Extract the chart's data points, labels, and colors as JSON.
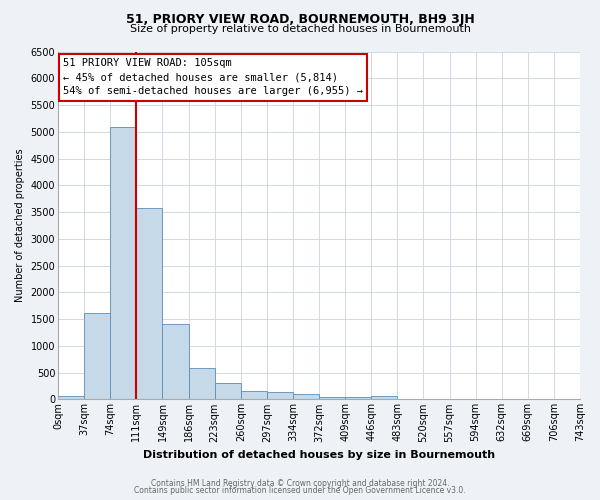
{
  "title": "51, PRIORY VIEW ROAD, BOURNEMOUTH, BH9 3JH",
  "subtitle": "Size of property relative to detached houses in Bournemouth",
  "xlabel": "Distribution of detached houses by size in Bournemouth",
  "ylabel": "Number of detached properties",
  "bin_labels": [
    "0sqm",
    "37sqm",
    "74sqm",
    "111sqm",
    "149sqm",
    "186sqm",
    "223sqm",
    "260sqm",
    "297sqm",
    "334sqm",
    "372sqm",
    "409sqm",
    "446sqm",
    "483sqm",
    "520sqm",
    "557sqm",
    "594sqm",
    "632sqm",
    "669sqm",
    "706sqm",
    "743sqm"
  ],
  "bar_values": [
    70,
    1620,
    5090,
    3580,
    1400,
    590,
    300,
    155,
    130,
    95,
    45,
    50,
    55,
    0,
    0,
    0,
    0,
    0,
    0,
    0
  ],
  "bar_color": "#c6d9e8",
  "bar_edge_color": "#5b8db8",
  "vline_color": "#cc0000",
  "vline_x": 3,
  "annotation_text": "51 PRIORY VIEW ROAD: 105sqm\n← 45% of detached houses are smaller (5,814)\n54% of semi-detached houses are larger (6,955) →",
  "annotation_box_color": "#ffffff",
  "annotation_box_edge": "#cc0000",
  "ylim": [
    0,
    6500
  ],
  "yticks": [
    0,
    500,
    1000,
    1500,
    2000,
    2500,
    3000,
    3500,
    4000,
    4500,
    5000,
    5500,
    6000,
    6500
  ],
  "footer1": "Contains HM Land Registry data © Crown copyright and database right 2024.",
  "footer2": "Contains public sector information licensed under the Open Government Licence v3.0.",
  "bg_color": "#eef2f7",
  "plot_bg_color": "#ffffff",
  "grid_color": "#c8d4e0",
  "title_fontsize": 9,
  "subtitle_fontsize": 8,
  "xlabel_fontsize": 8,
  "ylabel_fontsize": 7,
  "tick_fontsize": 7,
  "annot_fontsize": 7.5
}
